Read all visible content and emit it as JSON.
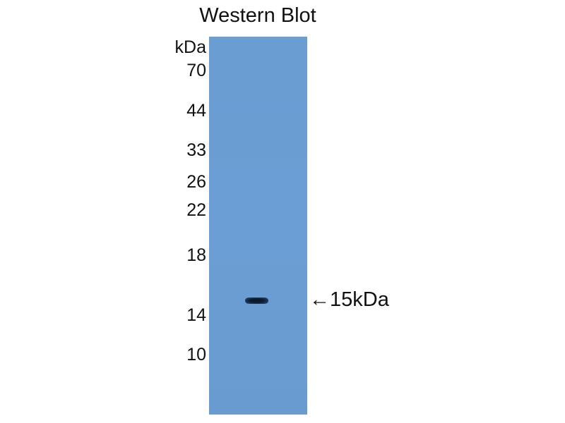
{
  "title": "Western Blot",
  "unit_label": "kDa",
  "markers": [
    "70",
    "44",
    "33",
    "26",
    "22",
    "18",
    "14",
    "10"
  ],
  "band_annotation": "←15kDa",
  "colors": {
    "membrane": "#6a9dd2",
    "band": "#0d1a2e"
  }
}
